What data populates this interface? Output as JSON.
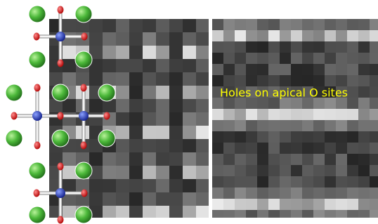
{
  "annotation": "Holes on apical O sites"
}
